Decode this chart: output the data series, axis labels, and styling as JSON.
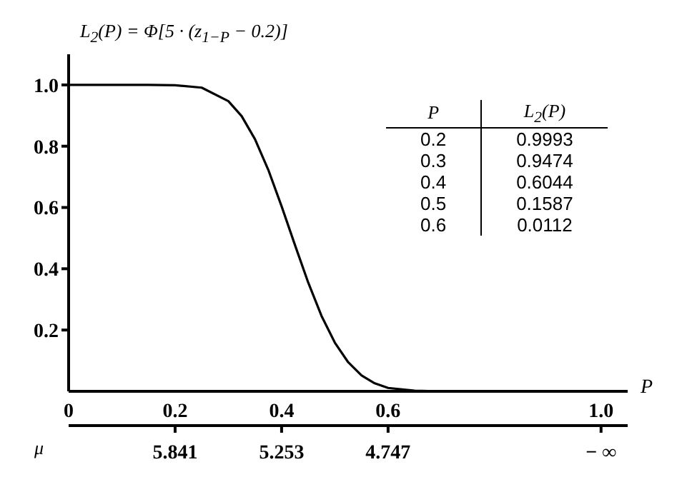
{
  "chart_data": {
    "type": "line",
    "ylabel": "L$_{2}$(P) = Φ[5 · (z$_{1−P}$ − 0.2)]",
    "xlabel": "P",
    "x2label": "μ",
    "x": [
      0,
      0.05,
      0.1,
      0.15,
      0.2,
      0.25,
      0.3,
      0.325,
      0.35,
      0.375,
      0.4,
      0.425,
      0.45,
      0.475,
      0.5,
      0.525,
      0.55,
      0.575,
      0.6,
      0.65,
      0.7
    ],
    "values": [
      1.0,
      1.0,
      1.0,
      1.0,
      0.999,
      0.991,
      0.947,
      0.898,
      0.823,
      0.723,
      0.604,
      0.478,
      0.355,
      0.246,
      0.159,
      0.095,
      0.052,
      0.026,
      0.011,
      0.002,
      0.0
    ],
    "color": "#000000",
    "marker": "none",
    "line_style": "solid",
    "grid": false,
    "xlim": [
      0,
      1.05
    ],
    "xticks": [
      0,
      0.2,
      0.4,
      0.6,
      {
        "value": 1,
        "label": "1.0"
      }
    ],
    "ylim": [
      0,
      1.1
    ],
    "yticks": [
      0.2,
      0.4,
      0.6,
      0.8,
      {
        "value": 1,
        "label": "1.0"
      }
    ],
    "annotations": [
      "P",
      "L$_{2}$(P)",
      "0.2",
      "0.3",
      "0.4",
      "0.5",
      "0.6",
      "0.9993",
      "0.9474",
      "0.6044",
      "0.1587",
      "0.0112",
      "5.841",
      "5.253",
      "4.747",
      "− ∞"
    ]
  }
}
